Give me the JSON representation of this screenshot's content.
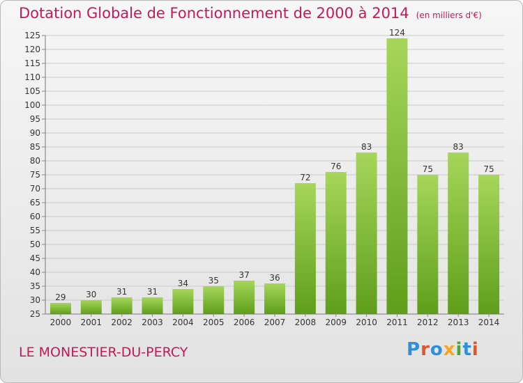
{
  "title": "Dotation Globale de Fonctionnement de 2000 à 2014",
  "subtitle": "(en milliers d'€)",
  "footer_label": "LE MONESTIER-DU-PERCY",
  "brand": {
    "letters": [
      "P",
      "r",
      "o",
      "x",
      "i",
      "t",
      "i"
    ],
    "colors": [
      "#2f8fd8",
      "#e0562b",
      "#2f8fd8",
      "#f5a623",
      "#4aa63c",
      "#2f8fd8",
      "#e0562b"
    ]
  },
  "colors": {
    "title": "#c2195b",
    "bar_light": "#a6d65a",
    "bar_dark": "#5f9e1a"
  },
  "chart_data": {
    "type": "bar",
    "categories": [
      "2000",
      "2001",
      "2002",
      "2003",
      "2004",
      "2005",
      "2006",
      "2007",
      "2008",
      "2009",
      "2010",
      "2011",
      "2012",
      "2013",
      "2014"
    ],
    "values": [
      29,
      30,
      31,
      31,
      34,
      35,
      37,
      36,
      72,
      76,
      83,
      124,
      75,
      83,
      75
    ],
    "ylim": [
      25,
      125
    ],
    "yticks": [
      25,
      30,
      35,
      40,
      45,
      50,
      55,
      60,
      65,
      70,
      75,
      80,
      85,
      90,
      95,
      100,
      105,
      110,
      115,
      120,
      125
    ],
    "grid": true,
    "xlabel": "",
    "ylabel": ""
  }
}
